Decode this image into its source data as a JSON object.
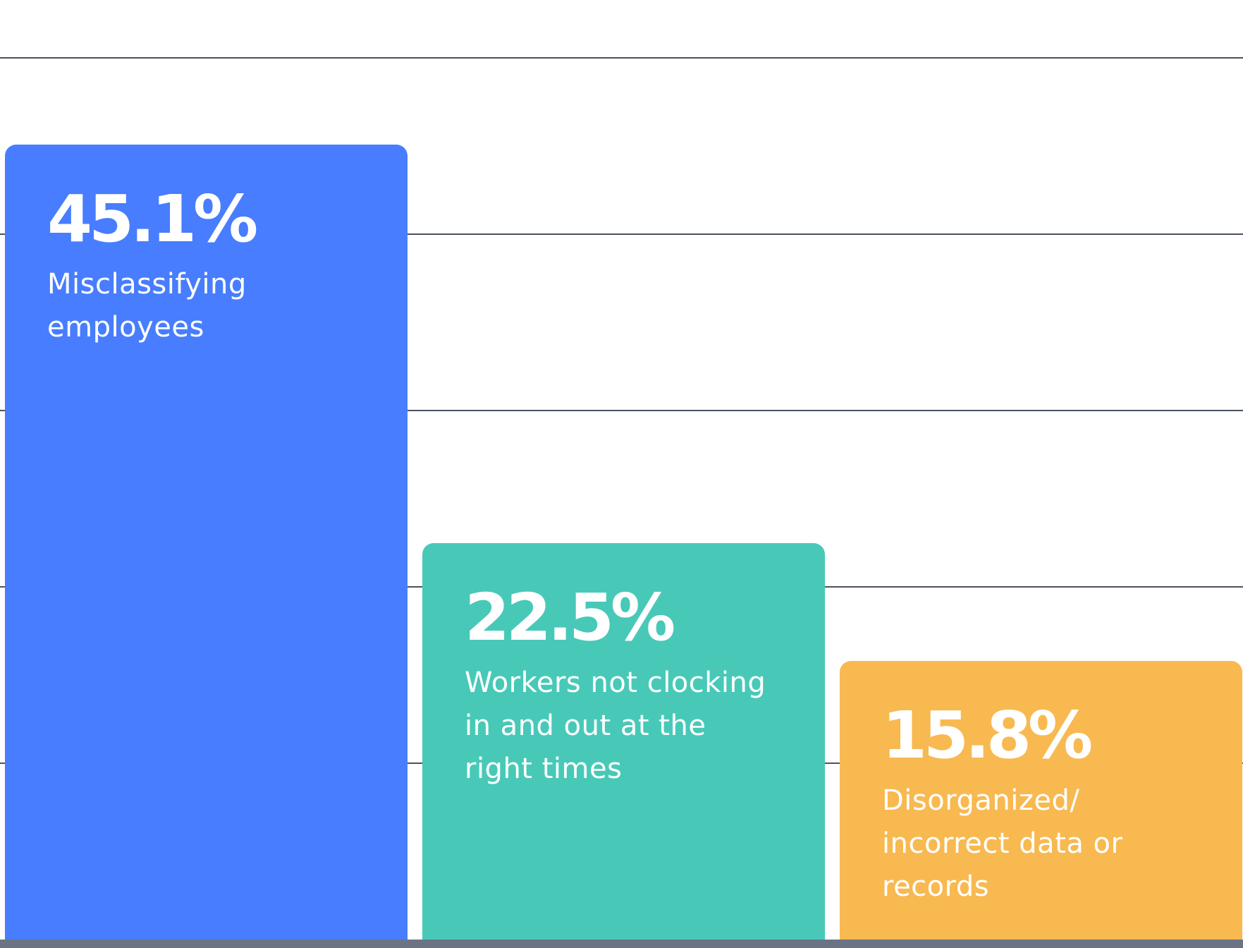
{
  "chart_data": {
    "type": "bar",
    "categories": [
      "Misclassifying employees",
      "Workers not clocking in and out at the right times",
      "Disorganized/ incorrect data or records"
    ],
    "values": [
      45.1,
      22.5,
      15.8
    ],
    "value_labels": [
      "45.1%",
      "22.5%",
      "15.8%"
    ],
    "colors": [
      "#477DFE",
      "#48C9B8",
      "#F8B951"
    ],
    "ylim": [
      0,
      50
    ],
    "grid": true,
    "gridline_values": [
      10,
      20,
      30,
      40,
      50
    ],
    "labels_inside_bars": true
  }
}
